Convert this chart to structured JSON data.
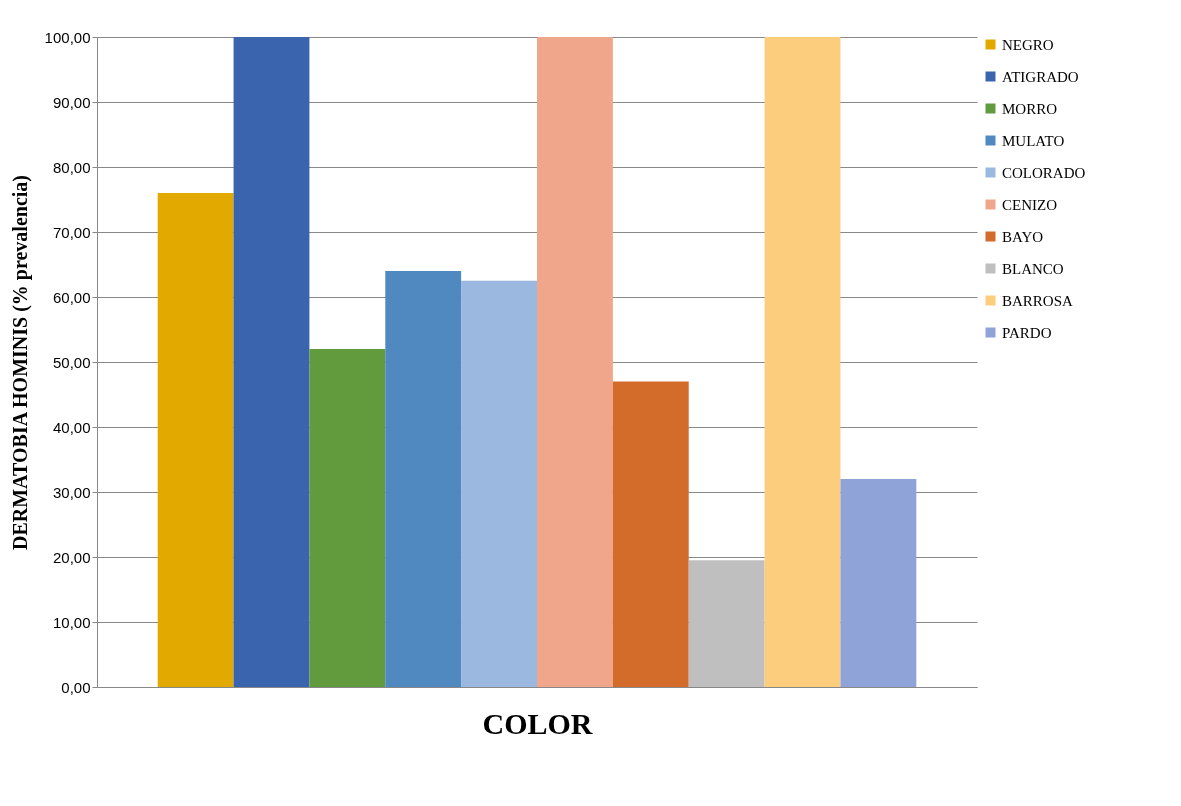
{
  "chart_data": {
    "type": "bar",
    "xlabel": "COLOR",
    "ylabel": "DERMATOBIA HOMINIS  (% prevalencia)",
    "categories": [
      null
    ],
    "series": [
      {
        "name": "NEGRO",
        "color": "#e2a900",
        "values": [
          76
        ]
      },
      {
        "name": "ATIGRADO",
        "color": "#3a64ae",
        "values": [
          100
        ]
      },
      {
        "name": "MORRO",
        "color": "#629a3e",
        "values": [
          52
        ]
      },
      {
        "name": "MULATO",
        "color": "#4f89c0",
        "values": [
          64
        ]
      },
      {
        "name": "COLORADO",
        "color": "#9ab8e0",
        "values": [
          62.5
        ]
      },
      {
        "name": "CENIZO",
        "color": "#f0a68a",
        "values": [
          100
        ]
      },
      {
        "name": "BAYO",
        "color": "#d36b2a",
        "values": [
          47
        ]
      },
      {
        "name": "BLANCO",
        "color": "#bfbfbf",
        "values": [
          19.5
        ]
      },
      {
        "name": "BARROSA",
        "color": "#fdcd7e",
        "values": [
          100
        ]
      },
      {
        "name": "PARDO",
        "color": "#8fa3d8",
        "values": [
          32
        ]
      }
    ],
    "ylim": [
      0,
      100
    ],
    "yticks": [
      {
        "value": 0,
        "label": "0,00"
      },
      {
        "value": 10,
        "label": "10,00"
      },
      {
        "value": 20,
        "label": "20,00"
      },
      {
        "value": 30,
        "label": "30,00"
      },
      {
        "value": 40,
        "label": "40,00"
      },
      {
        "value": 50,
        "label": "50,00"
      },
      {
        "value": 60,
        "label": "60,00"
      },
      {
        "value": 70,
        "label": "70,00"
      },
      {
        "value": 80,
        "label": "80,00"
      },
      {
        "value": 90,
        "label": "90,00"
      },
      {
        "value": 100,
        "label": "100,00"
      }
    ],
    "grid": "y",
    "legend": "right"
  }
}
